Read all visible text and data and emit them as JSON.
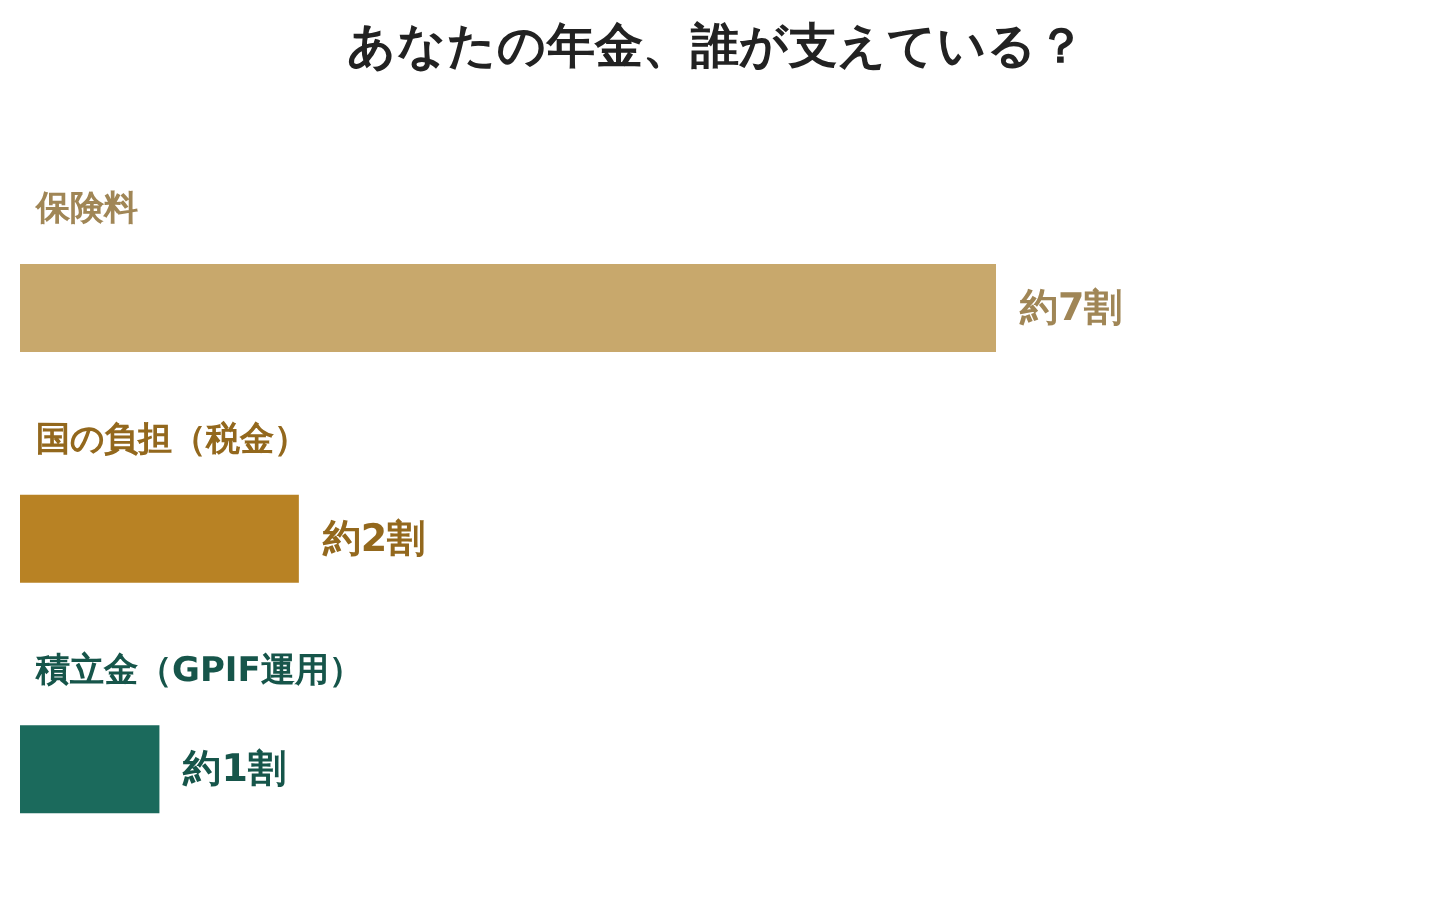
{
  "chart_data": {
    "type": "bar",
    "orientation": "horizontal",
    "title": "あなたの年金、誰が支えている？",
    "categories": [
      "保険料",
      "国の負担（税金）",
      "積立金（GPIF運用）"
    ],
    "values": [
      7,
      2,
      1
    ],
    "colors": [
      "#c8a86c",
      "#b88224",
      "#1b6a5c"
    ],
    "value_labels": [
      "約7割",
      "約2割",
      "約1割"
    ],
    "xlim": [
      0,
      7
    ],
    "grid": false,
    "legend": false
  }
}
